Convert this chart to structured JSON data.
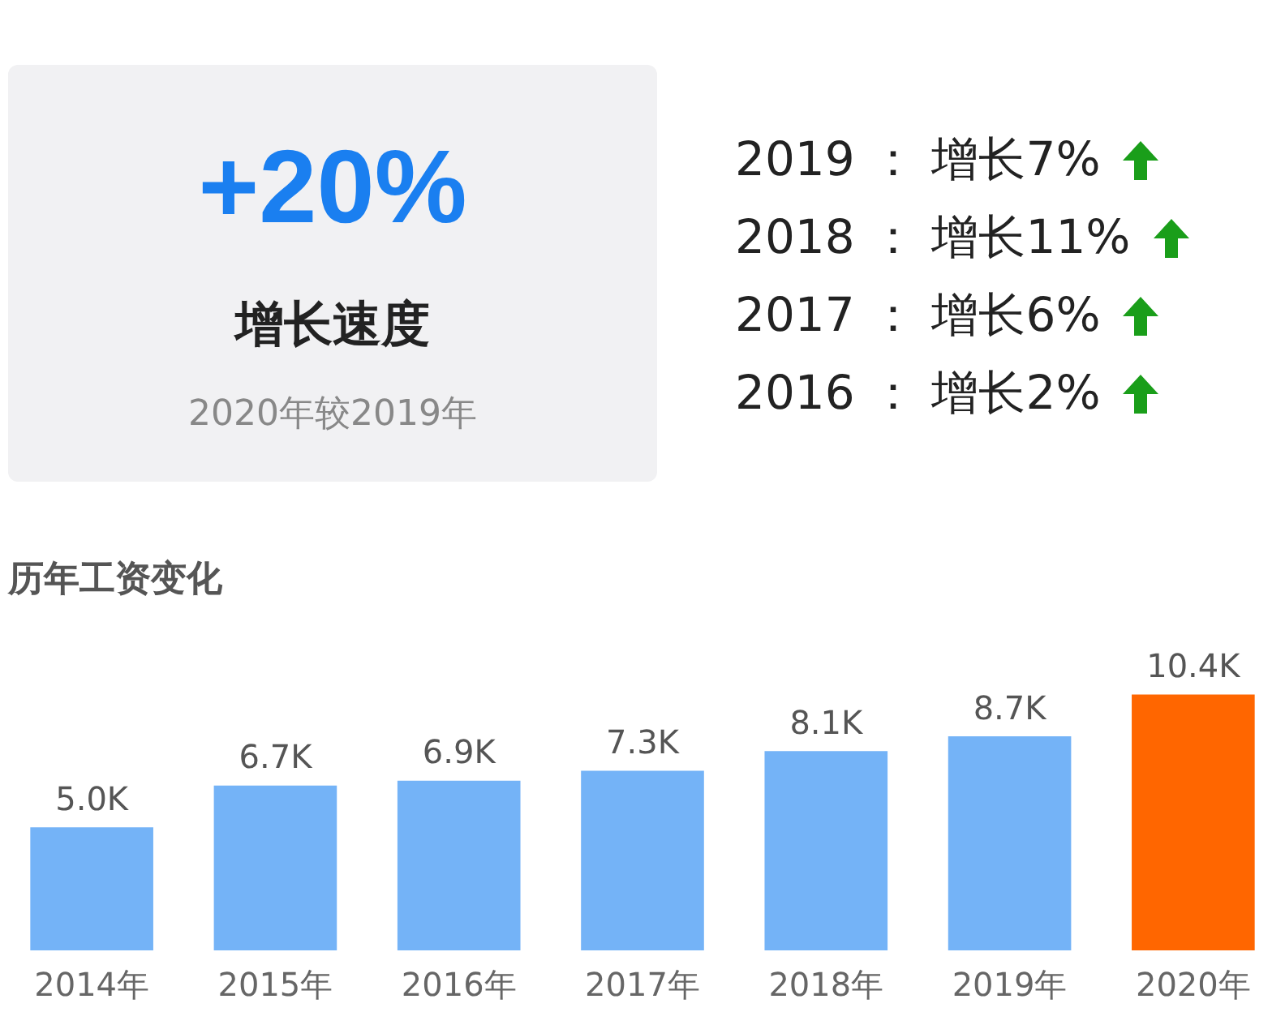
{
  "chart_data": [
    {
      "type": "other",
      "title": "+20%",
      "subtitle": "增长速度",
      "annotations": [
        "2020年较2019年",
        "2019 ： 增长7%",
        "2018 ： 增长11%",
        "2017 ： 增长6%",
        "2016 ： 增长2%"
      ]
    },
    {
      "type": "bar",
      "title": "历年工资变化",
      "categories": [
        "2014年",
        "2015年",
        "2016年",
        "2017年",
        "2018年",
        "2019年",
        "2020年"
      ],
      "values": [
        5.0,
        6.7,
        6.9,
        7.3,
        8.1,
        8.7,
        10.4
      ],
      "value_labels": [
        "5.0K",
        "6.7K",
        "6.9K",
        "7.3K",
        "8.1K",
        "8.7K",
        "10.4K"
      ],
      "colors": [
        "#74b3f7",
        "#74b3f7",
        "#74b3f7",
        "#74b3f7",
        "#74b3f7",
        "#74b3f7",
        "#ff6600"
      ]
    }
  ]
}
